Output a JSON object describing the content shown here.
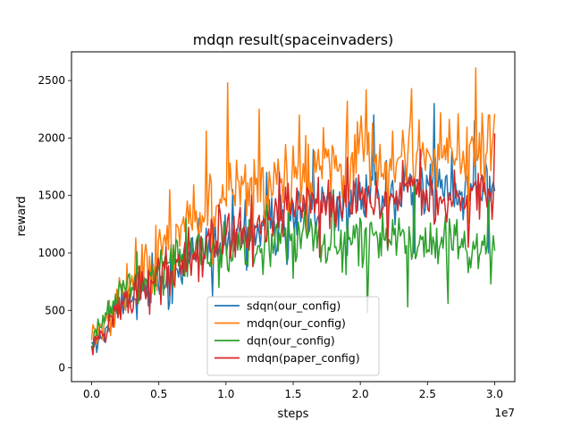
{
  "chart_data": {
    "type": "line",
    "title": "mdqn result(spaceinvaders)",
    "xlabel": "steps",
    "ylabel": "reward",
    "x_offset_label": "1e7",
    "x_scale": 10000000,
    "xlim": [
      -0.15,
      3.15
    ],
    "ylim": [
      -120,
      2750
    ],
    "xticks": [
      0.0,
      0.5,
      1.0,
      1.5,
      2.0,
      2.5,
      3.0
    ],
    "xtick_labels": [
      "0.0",
      "0.5",
      "1.0",
      "1.5",
      "2.0",
      "2.5",
      "3.0"
    ],
    "yticks": [
      0,
      500,
      1000,
      1500,
      2000,
      2500
    ],
    "ytick_labels": [
      "0",
      "500",
      "1000",
      "1500",
      "2000",
      "2500"
    ],
    "legend_position": "lower-center",
    "series": [
      {
        "name": "sdqn(our_config)",
        "color": "#1f77b4",
        "trend": [
          [
            0.0,
            150
          ],
          [
            0.1,
            330
          ],
          [
            0.25,
            600
          ],
          [
            0.5,
            760
          ],
          [
            0.75,
            960
          ],
          [
            1.0,
            1100
          ],
          [
            1.25,
            1220
          ],
          [
            1.5,
            1330
          ],
          [
            1.75,
            1420
          ],
          [
            2.0,
            1480
          ],
          [
            2.25,
            1520
          ],
          [
            2.5,
            1540
          ],
          [
            2.75,
            1560
          ],
          [
            3.0,
            1580
          ]
        ],
        "noise": 230,
        "min": [
          [
            0.15,
            380
          ],
          [
            0.34,
            420
          ],
          [
            0.6,
            560
          ],
          [
            0.9,
            620
          ],
          [
            1.15,
            850
          ],
          [
            1.45,
            900
          ],
          [
            1.9,
            980
          ],
          [
            2.4,
            1000
          ],
          [
            2.95,
            1000
          ]
        ],
        "max": [
          [
            0.45,
            1000
          ],
          [
            0.8,
            1300
          ],
          [
            1.05,
            1550
          ],
          [
            1.3,
            1700
          ],
          [
            1.65,
            1900
          ],
          [
            2.1,
            2200
          ],
          [
            2.55,
            2300
          ],
          [
            2.85,
            2150
          ]
        ]
      },
      {
        "name": "mdqn(our_config)",
        "color": "#ff7f0e",
        "trend": [
          [
            0.0,
            200
          ],
          [
            0.1,
            380
          ],
          [
            0.25,
            700
          ],
          [
            0.5,
            950
          ],
          [
            0.75,
            1280
          ],
          [
            1.0,
            1500
          ],
          [
            1.25,
            1620
          ],
          [
            1.5,
            1700
          ],
          [
            1.75,
            1760
          ],
          [
            2.0,
            1820
          ],
          [
            2.25,
            1860
          ],
          [
            2.5,
            1880
          ],
          [
            2.75,
            1900
          ],
          [
            3.0,
            1920
          ]
        ],
        "noise": 280,
        "min": [
          [
            0.2,
            500
          ],
          [
            0.45,
            650
          ],
          [
            0.62,
            700
          ],
          [
            0.9,
            900
          ],
          [
            1.2,
            1000
          ],
          [
            1.6,
            1150
          ],
          [
            2.2,
            1150
          ],
          [
            2.8,
            1250
          ]
        ],
        "max": [
          [
            0.33,
            1130
          ],
          [
            0.58,
            1550
          ],
          [
            0.85,
            2060
          ],
          [
            1.01,
            2480
          ],
          [
            1.25,
            2250
          ],
          [
            1.55,
            2200
          ],
          [
            1.9,
            2320
          ],
          [
            2.04,
            2420
          ],
          [
            2.38,
            2430
          ],
          [
            2.86,
            2610
          ],
          [
            3.0,
            2210
          ]
        ]
      },
      {
        "name": "dqn(our_config)",
        "color": "#2ca02c",
        "trend": [
          [
            0.0,
            200
          ],
          [
            0.1,
            450
          ],
          [
            0.25,
            720
          ],
          [
            0.5,
            860
          ],
          [
            0.75,
            1000
          ],
          [
            1.0,
            1080
          ],
          [
            1.25,
            1110
          ],
          [
            1.5,
            1130
          ],
          [
            1.75,
            1130
          ],
          [
            2.0,
            1110
          ],
          [
            2.25,
            1100
          ],
          [
            2.5,
            1080
          ],
          [
            2.75,
            1070
          ],
          [
            3.0,
            1000
          ]
        ],
        "noise": 200,
        "min": [
          [
            0.35,
            560
          ],
          [
            0.95,
            700
          ],
          [
            1.5,
            780
          ],
          [
            2.05,
            480
          ],
          [
            2.35,
            530
          ],
          [
            2.65,
            560
          ],
          [
            2.97,
            730
          ]
        ],
        "max": [
          [
            0.7,
            1300
          ],
          [
            1.3,
            1420
          ],
          [
            1.8,
            1550
          ],
          [
            2.4,
            1600
          ],
          [
            2.95,
            1460
          ]
        ]
      },
      {
        "name": "mdqn(paper_config)",
        "color": "#d62728",
        "trend": [
          [
            0.0,
            150
          ],
          [
            0.1,
            350
          ],
          [
            0.25,
            580
          ],
          [
            0.5,
            780
          ],
          [
            0.75,
            1000
          ],
          [
            1.0,
            1150
          ],
          [
            1.25,
            1260
          ],
          [
            1.5,
            1360
          ],
          [
            1.75,
            1420
          ],
          [
            2.0,
            1460
          ],
          [
            2.25,
            1480
          ],
          [
            2.5,
            1490
          ],
          [
            2.75,
            1500
          ],
          [
            3.0,
            1510
          ]
        ],
        "noise": 210,
        "min": [
          [
            0.1,
            220
          ],
          [
            0.4,
            600
          ],
          [
            0.8,
            750
          ],
          [
            1.2,
            880
          ],
          [
            1.7,
            960
          ],
          [
            2.2,
            1050
          ],
          [
            2.8,
            1050
          ]
        ],
        "max": [
          [
            0.55,
            1050
          ],
          [
            0.95,
            1420
          ],
          [
            1.4,
            1700
          ],
          [
            1.9,
            1830
          ],
          [
            2.45,
            1900
          ],
          [
            3.0,
            2040
          ]
        ]
      }
    ]
  }
}
